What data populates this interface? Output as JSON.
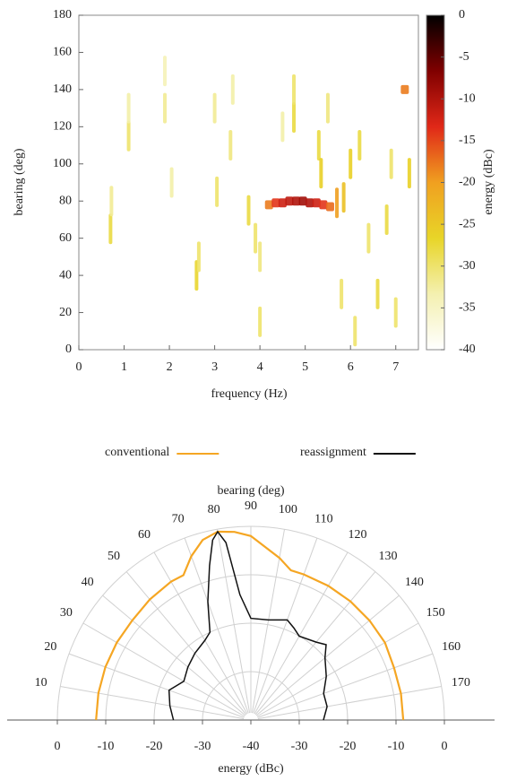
{
  "chart_data": [
    {
      "type": "heatmap",
      "x_label": "frequency (Hz)",
      "y_label": "bearing (deg)",
      "colorbar_label": "energy (dBc)",
      "x": [
        4.2,
        4.35,
        4.5,
        4.65,
        4.8,
        4.95,
        5.1,
        5.25,
        5.4,
        5.55,
        5.7,
        5.85,
        0.7,
        0.72,
        1.1,
        1.1,
        1.9,
        1.9,
        2.6,
        2.65,
        3.05,
        3.0,
        3.35,
        3.4,
        3.75,
        3.9,
        4.0,
        4.0,
        4.5,
        4.75,
        4.75,
        5.3,
        5.35,
        5.5,
        5.8,
        6.0,
        6.2,
        6.4,
        6.6,
        6.8,
        6.9,
        7.2,
        7.3,
        7.0,
        6.1,
        2.05
      ],
      "y": [
        78,
        79,
        79,
        80,
        80,
        80,
        79,
        79,
        78,
        77,
        79,
        82,
        65,
        80,
        115,
        130,
        130,
        150,
        40,
        50,
        85,
        130,
        110,
        140,
        75,
        60,
        50,
        15,
        120,
        125,
        140,
        110,
        95,
        130,
        30,
        100,
        110,
        60,
        30,
        70,
        100,
        140,
        95,
        20,
        10,
        90
      ],
      "values": [
        -18,
        -14,
        -12,
        -11,
        -10,
        -9,
        -10,
        -12,
        -14,
        -17,
        -20,
        -24,
        -28,
        -32,
        -30,
        -33,
        -32,
        -34,
        -27,
        -30,
        -30,
        -32,
        -31,
        -33,
        -28,
        -30,
        -31,
        -30,
        -33,
        -28,
        -30,
        -28,
        -26,
        -31,
        -30,
        -26,
        -28,
        -30,
        -28,
        -28,
        -30,
        -18,
        -26,
        -30,
        -30,
        -33
      ],
      "xlim": [
        0,
        7.5
      ],
      "xticks": [
        0,
        1,
        2,
        3,
        4,
        5,
        6,
        7
      ],
      "ylim": [
        0,
        180
      ],
      "yticks": [
        0,
        20,
        40,
        60,
        80,
        100,
        120,
        140,
        160,
        180
      ],
      "zlim": [
        -40,
        0
      ],
      "zticks": [
        0,
        -5,
        -10,
        -15,
        -20,
        -25,
        -30,
        -35,
        -40
      ],
      "colormap": [
        "#ffffff",
        "#f4f0b0",
        "#e8d528",
        "#f0a020",
        "#e02818",
        "#800000",
        "#000000"
      ]
    },
    {
      "type": "polar",
      "title": "bearing (deg)",
      "x_label": "energy (dBc)",
      "legend": "top",
      "series": [
        {
          "name": "conventional",
          "color": "#f5a623",
          "x": [
            0,
            10,
            20,
            30,
            40,
            50,
            60,
            65,
            70,
            75,
            80,
            85,
            90,
            100,
            105,
            110,
            120,
            130,
            140,
            150,
            160,
            170,
            180
          ],
          "values": [
            -8,
            -8,
            -8,
            -8,
            -8,
            -7.5,
            -7,
            -7,
            -4,
            -1.5,
            -0.5,
            -1,
            -2,
            -6,
            -8,
            -8,
            -8,
            -8,
            -8,
            -8,
            -8.5,
            -8.5,
            -8.5
          ]
        },
        {
          "name": "reassignment",
          "color": "#111111",
          "x": [
            0,
            10,
            20,
            30,
            40,
            50,
            60,
            65,
            70,
            75,
            78,
            80,
            82,
            85,
            90,
            100,
            110,
            115,
            120,
            130,
            135,
            140,
            150,
            160,
            170,
            180
          ],
          "values": [
            -24,
            -23,
            -22,
            -24,
            -23,
            -22,
            -21,
            -20,
            -14,
            -7,
            -2,
            -0.5,
            -3,
            -14,
            -19,
            -19,
            -18,
            -19,
            -20,
            -19,
            -18,
            -20,
            -22,
            -24,
            -24,
            -25
          ]
        }
      ],
      "xlim": [
        0,
        180
      ],
      "xticks": [
        10,
        20,
        30,
        40,
        50,
        60,
        70,
        80,
        90,
        100,
        110,
        120,
        130,
        140,
        150,
        160,
        170
      ],
      "rlim": [
        -40,
        0
      ],
      "rticks": [
        -40,
        -30,
        -20,
        -10,
        0
      ]
    }
  ]
}
